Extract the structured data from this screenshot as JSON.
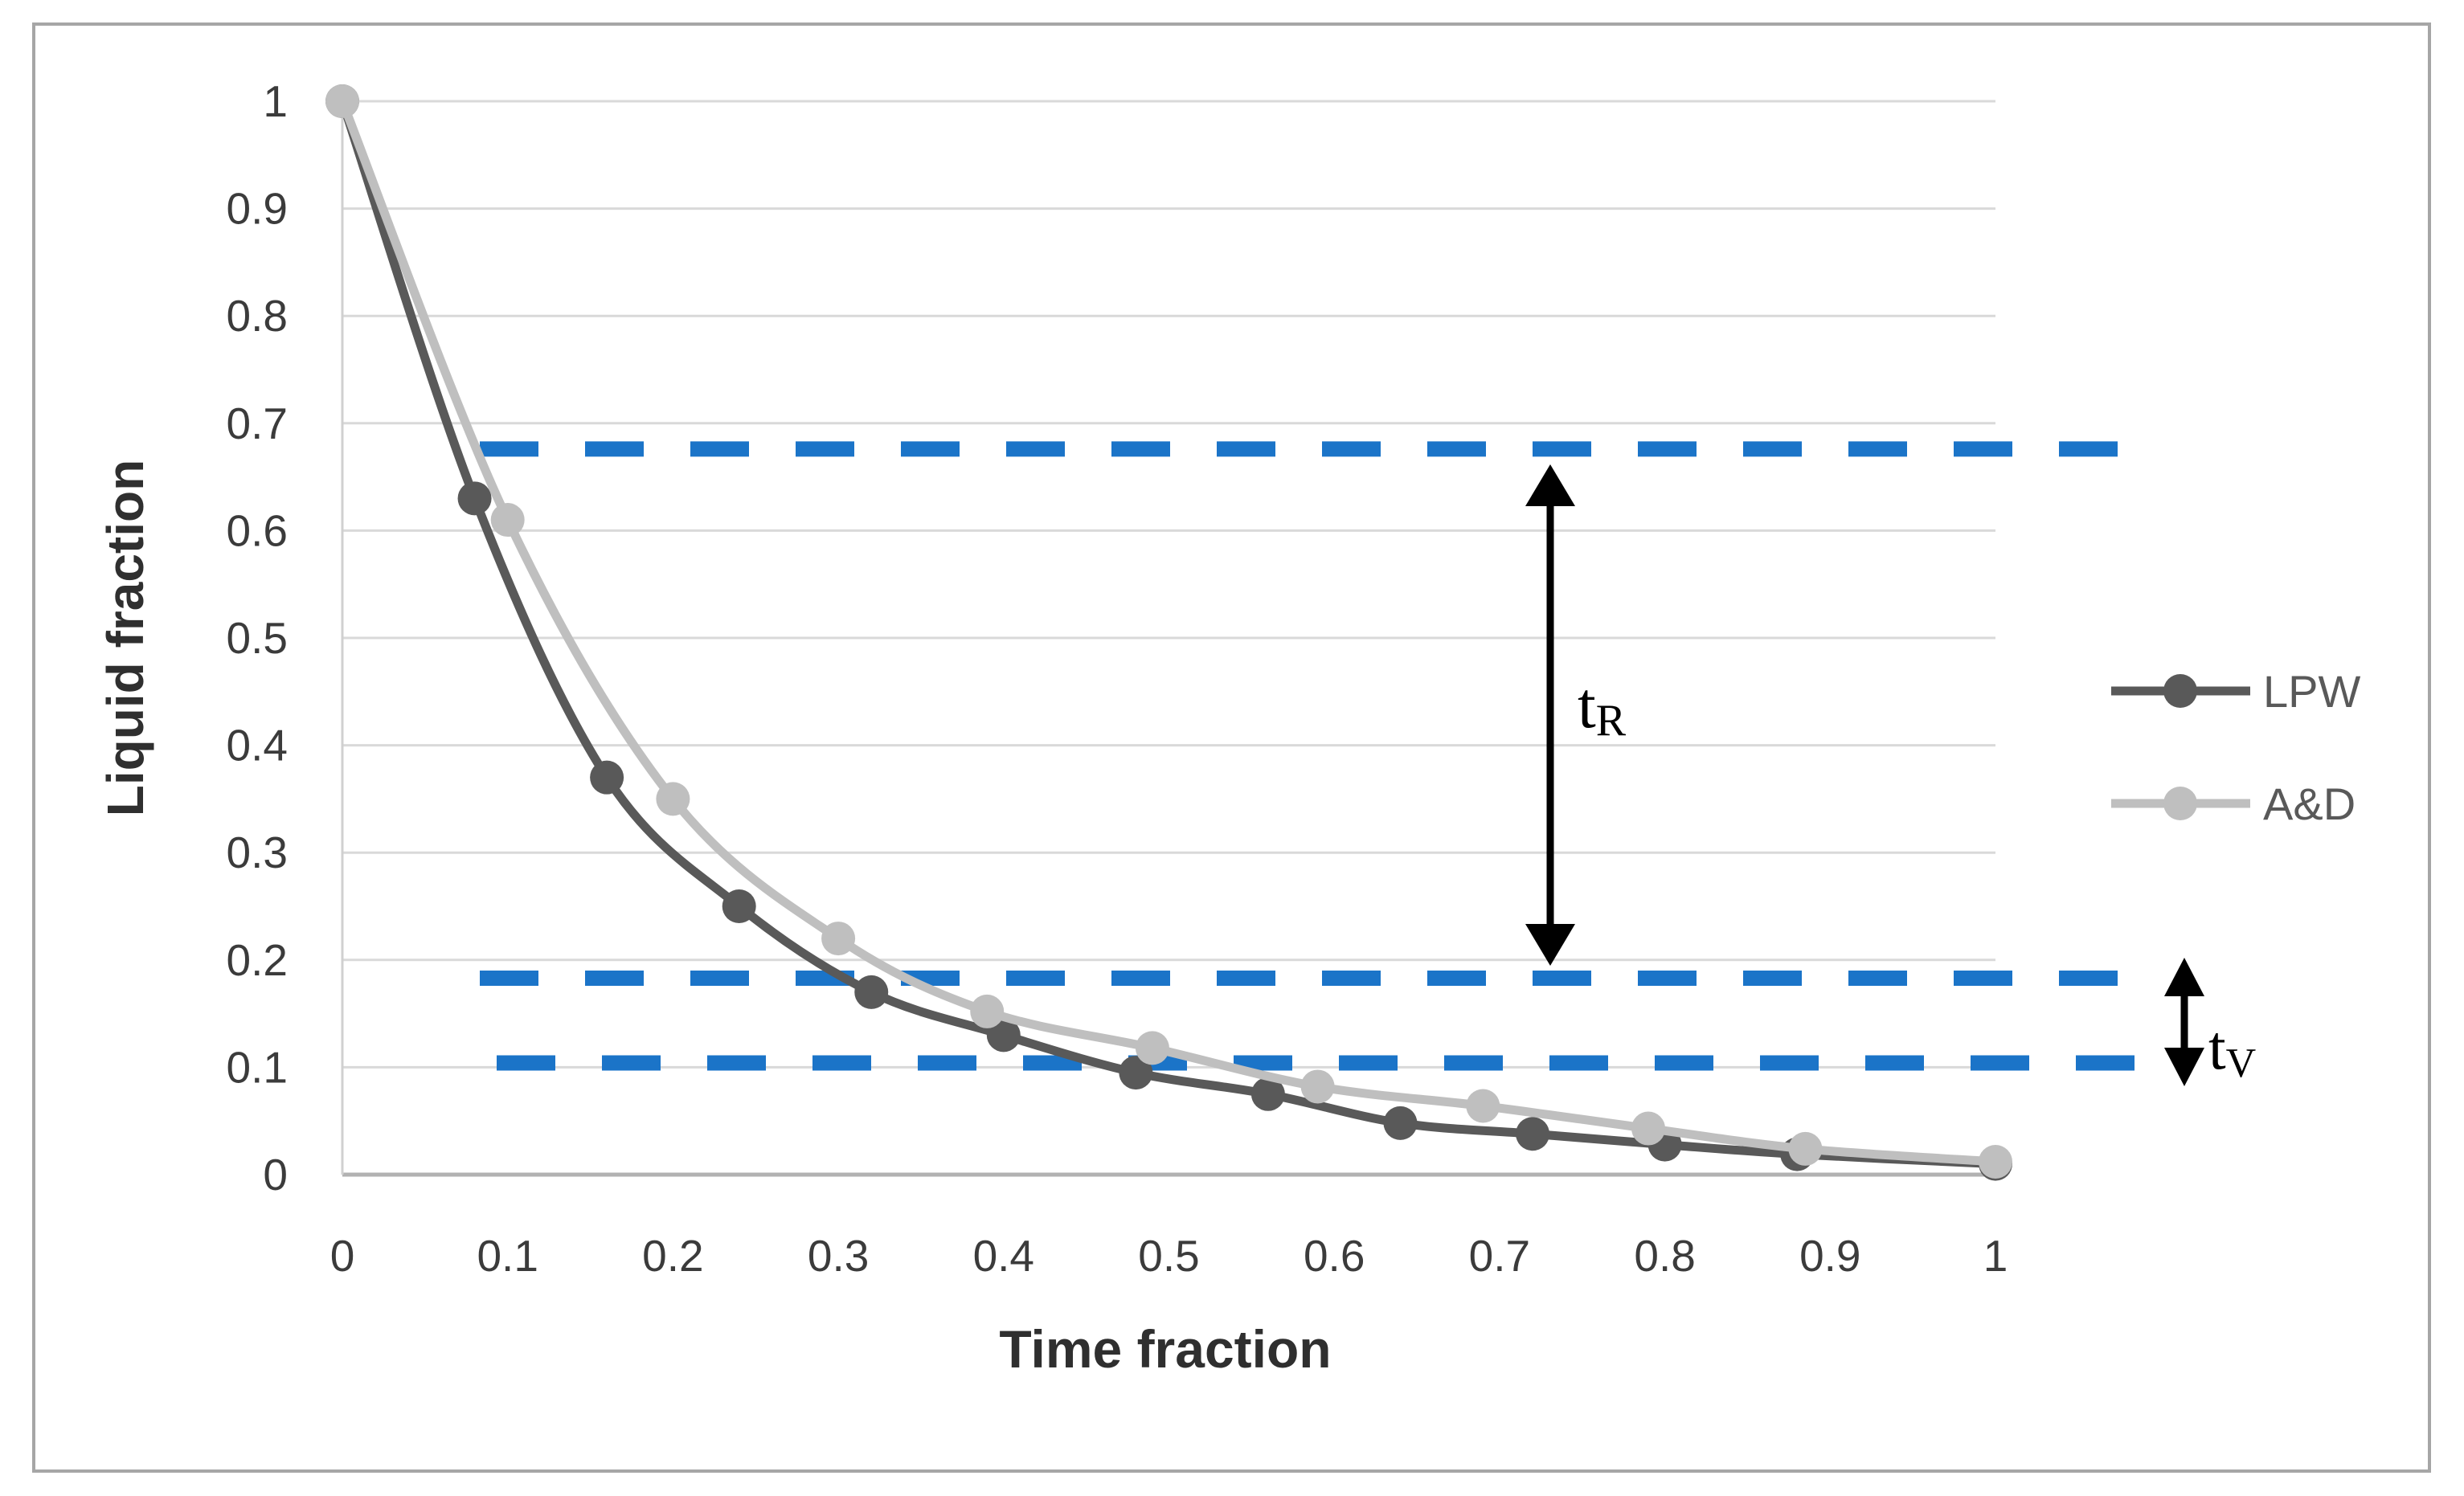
{
  "chart_data": {
    "type": "line",
    "title": "",
    "xlabel": "Time fraction",
    "ylabel": "Liquid fraction",
    "xlim": [
      0,
      1
    ],
    "ylim": [
      0,
      1
    ],
    "grid": "horizontal",
    "x_ticks": [
      0,
      0.1,
      0.2,
      0.3,
      0.4,
      0.5,
      0.6,
      0.7,
      0.8,
      0.9,
      1
    ],
    "x_tick_labels": [
      "0",
      "0.1",
      "0.2",
      "0.3",
      "0.4",
      "0.5",
      "0.6",
      "0.7",
      "0.8",
      "0.9",
      "1"
    ],
    "y_ticks": [
      0,
      0.1,
      0.2,
      0.3,
      0.4,
      0.5,
      0.6,
      0.7,
      0.8,
      0.9,
      1
    ],
    "y_tick_labels": [
      "0",
      "0.1",
      "0.2",
      "0.3",
      "0.4",
      "0.5",
      "0.6",
      "0.7",
      "0.8",
      "0.9",
      "1"
    ],
    "legend": {
      "position": "right",
      "entries": [
        "LPW",
        "A&D"
      ]
    },
    "series": [
      {
        "name": "LPW",
        "color": "#595959",
        "marker": "circle",
        "smooth": true,
        "points": [
          [
            0,
            1
          ],
          [
            0.08,
            0.63
          ],
          [
            0.16,
            0.37
          ],
          [
            0.24,
            0.25
          ],
          [
            0.32,
            0.17
          ],
          [
            0.4,
            0.13
          ],
          [
            0.48,
            0.095
          ],
          [
            0.56,
            0.075
          ],
          [
            0.64,
            0.048
          ],
          [
            0.72,
            0.038
          ],
          [
            0.8,
            0.028
          ],
          [
            0.88,
            0.019
          ],
          [
            1,
            0.01
          ]
        ]
      },
      {
        "name": "A&D",
        "color": "#bfbfbf",
        "marker": "circle",
        "smooth": true,
        "points": [
          [
            0,
            1
          ],
          [
            0.1,
            0.61
          ],
          [
            0.2,
            0.35
          ],
          [
            0.3,
            0.22
          ],
          [
            0.39,
            0.152
          ],
          [
            0.49,
            0.118
          ],
          [
            0.59,
            0.082
          ],
          [
            0.69,
            0.064
          ],
          [
            0.79,
            0.043
          ],
          [
            0.885,
            0.024
          ],
          [
            1,
            0.012
          ]
        ]
      }
    ],
    "reference_lines": [
      {
        "id": "upper",
        "y": 0.676,
        "style": "dashed",
        "color": "#1b74c8"
      },
      {
        "id": "middle",
        "y": 0.183,
        "style": "dashed",
        "color": "#1b74c8"
      },
      {
        "id": "lower",
        "y": 0.104,
        "style": "dashed",
        "color": "#1b74c8"
      }
    ],
    "annotations": [
      {
        "id": "tR",
        "text": "t",
        "subscript": "R",
        "arrow_from_y": 0.676,
        "arrow_to_y": 0.183
      },
      {
        "id": "tV",
        "text": "t",
        "subscript": "V",
        "arrow_from_y": 0.183,
        "arrow_to_y": 0.104
      }
    ]
  },
  "colors": {
    "series_lpw": "#595959",
    "series_ad": "#bfbfbf",
    "reference_blue": "#1b74c8",
    "gridline": "#d9d9d9",
    "y_axis_line": "#d0d0d0",
    "x_axis_line": "#b2b2b2",
    "outer_border": "#a6a6a6",
    "tick_text": "#3b3b3b",
    "title_text": "#2f2f2f",
    "legend_text": "#595959",
    "annotation": "#000000",
    "background": "#ffffff"
  }
}
